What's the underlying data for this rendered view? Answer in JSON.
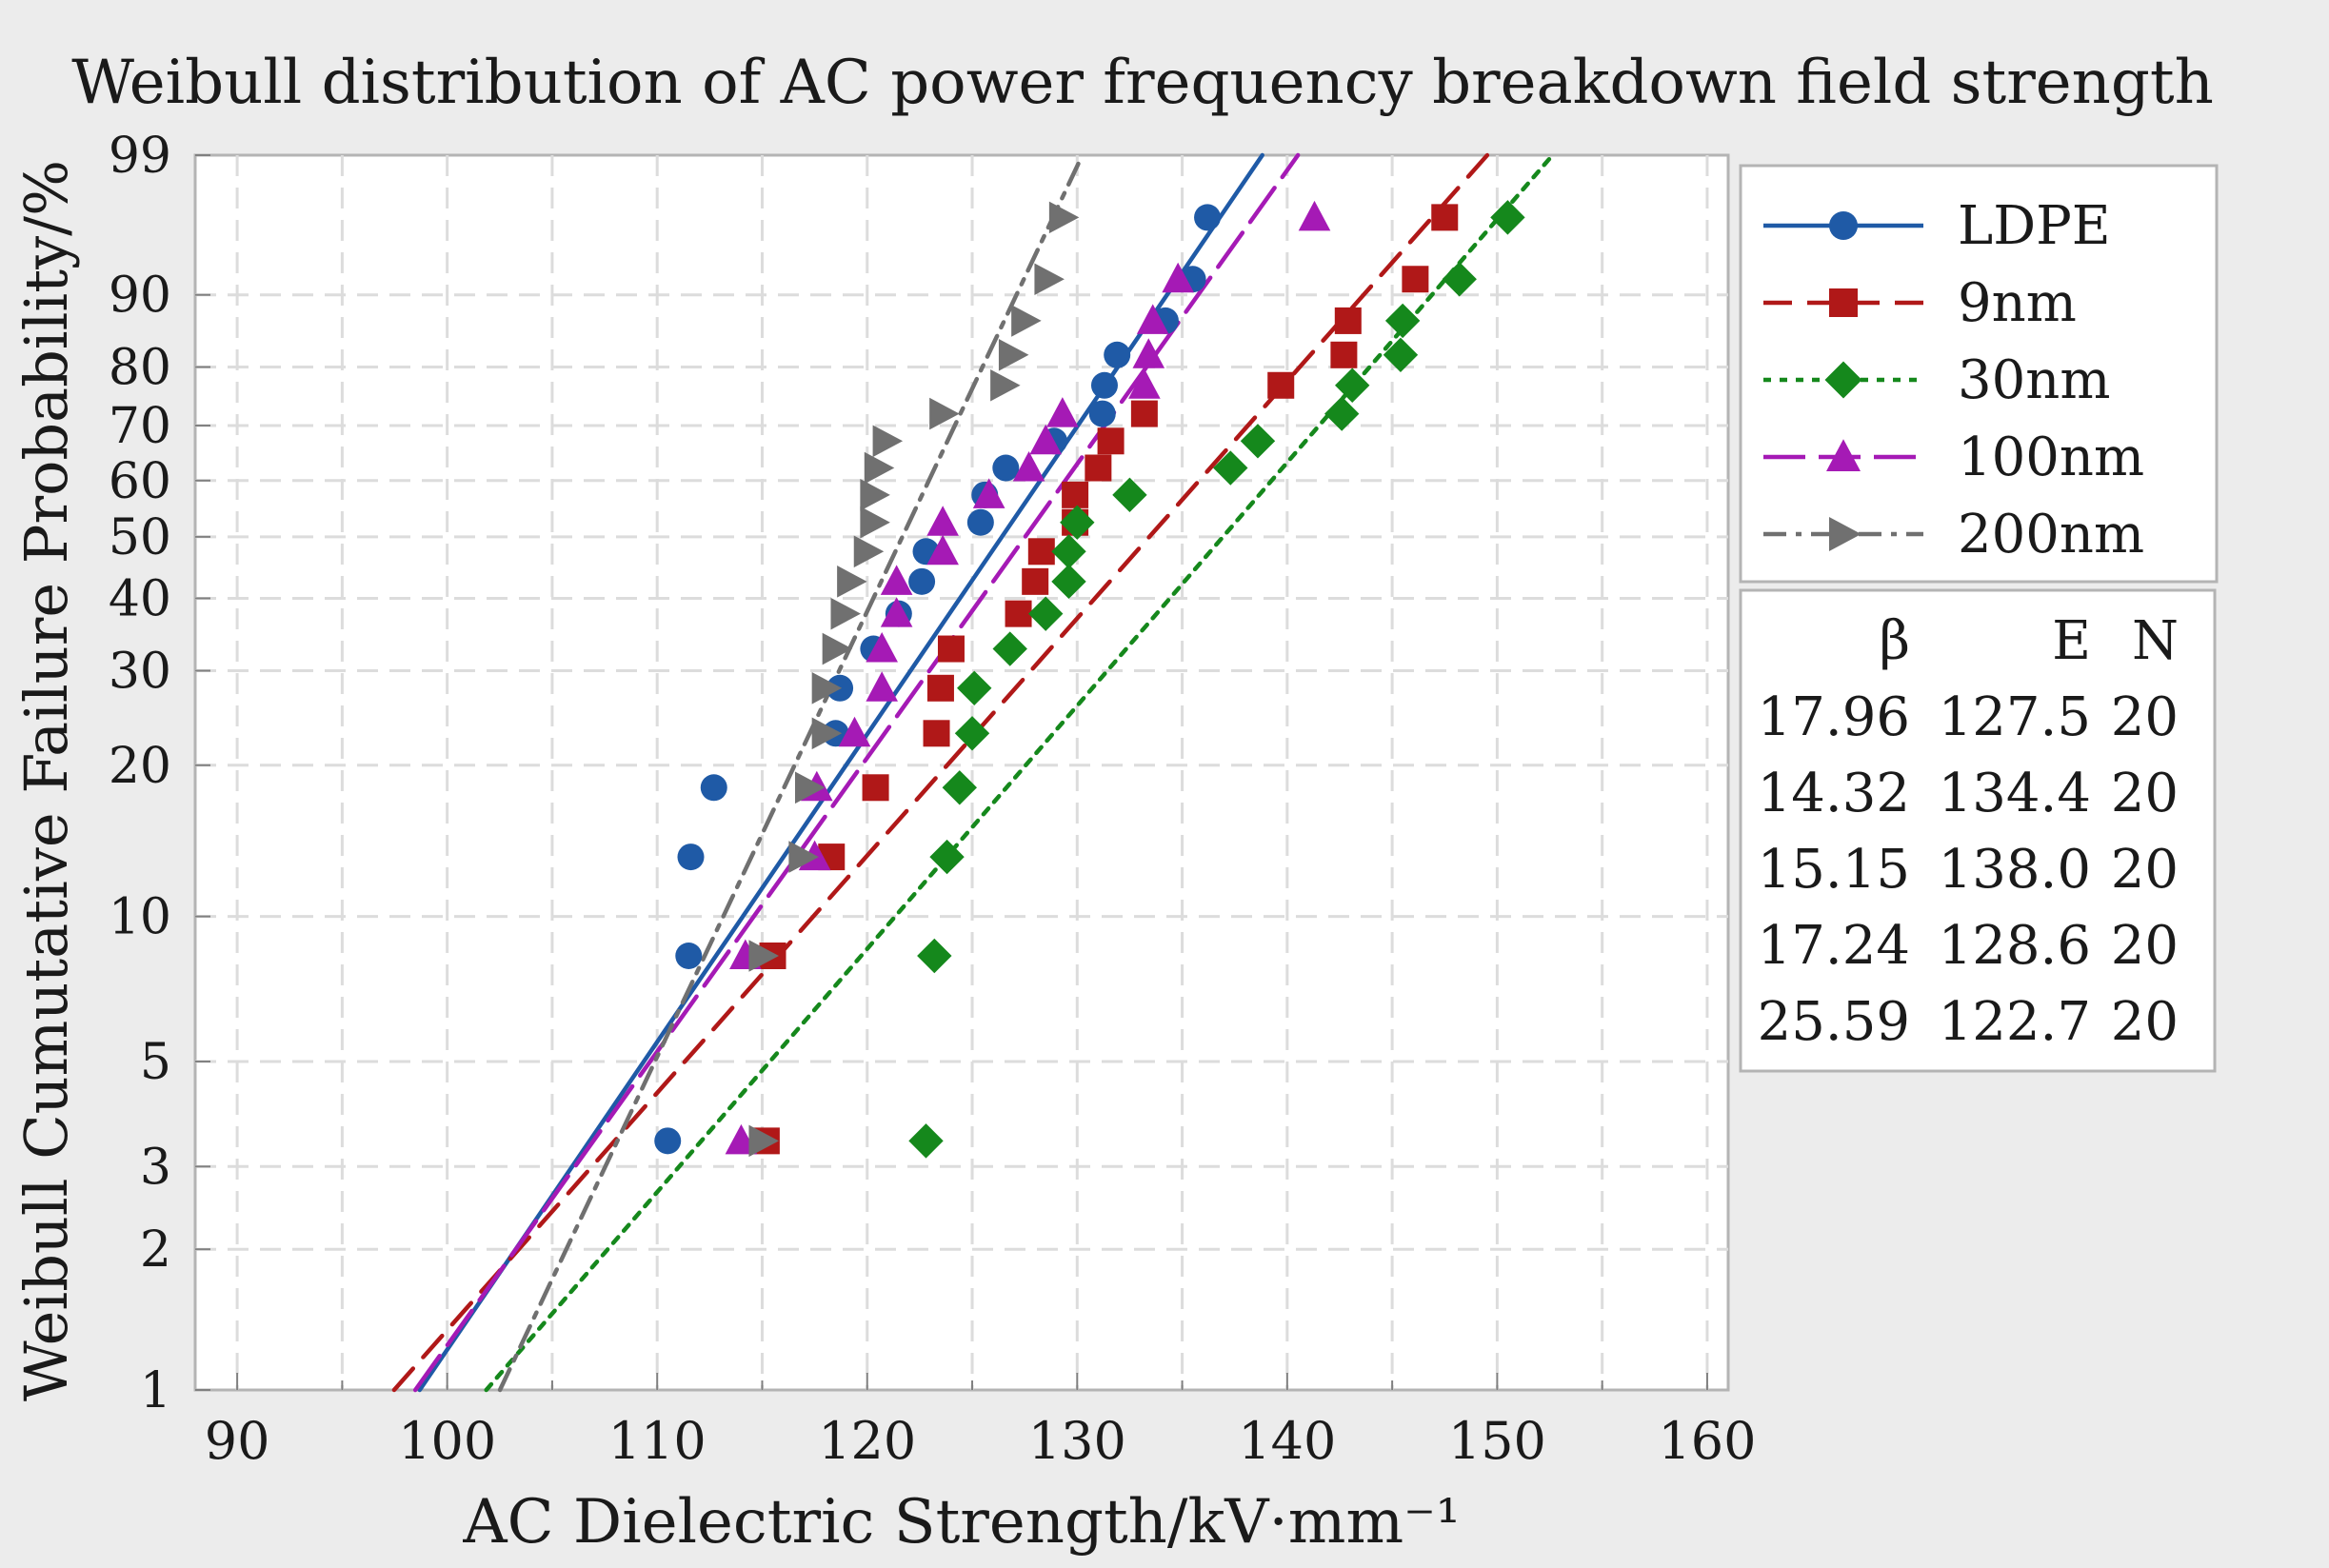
{
  "chart_data": {
    "type": "scatter",
    "title": "Weibull distribution of AC power frequency breakdown field strength",
    "xlabel": "AC Dielectric Strength/kV·mm⁻¹",
    "ylabel": "Weibull Cumutative Failure Probability/%",
    "xlim": [
      88,
      161
    ],
    "ylim": [
      1,
      99
    ],
    "x_ticks": [
      90,
      100,
      110,
      120,
      130,
      140,
      150,
      160
    ],
    "y_ticks": [
      1,
      2,
      3,
      5,
      10,
      20,
      30,
      40,
      50,
      60,
      70,
      80,
      90,
      99
    ],
    "grid": true,
    "legend_position": "right",
    "series": [
      {
        "name": "LDPE",
        "color": "#1f5aa6",
        "marker": "circle",
        "line_style": "solid",
        "beta": 17.96,
        "eta": 127.5,
        "n": 20,
        "points": [
          [
            110.5,
            3.4
          ],
          [
            111.5,
            8.3
          ],
          [
            111.6,
            13.2
          ],
          [
            112.7,
            18.1
          ],
          [
            118.5,
            23.0
          ],
          [
            118.7,
            27.9
          ],
          [
            120.3,
            32.8
          ],
          [
            122.6,
            42.6
          ],
          [
            122.8,
            47.5
          ],
          [
            125.4,
            52.5
          ],
          [
            125.6,
            57.4
          ],
          [
            126.6,
            62.3
          ],
          [
            128.9,
            67.2
          ],
          [
            131.2,
            72.1
          ],
          [
            131.3,
            77.0
          ],
          [
            131.9,
            81.9
          ],
          [
            134.2,
            86.8
          ],
          [
            135.5,
            91.7
          ],
          [
            136.2,
            96.6
          ],
          [
            121.5,
            37.7
          ]
        ]
      },
      {
        "name": "9nm",
        "color": "#b01818",
        "marker": "square",
        "line_style": "dashed",
        "beta": 14.32,
        "eta": 134.4,
        "n": 20,
        "points": [
          [
            115.2,
            3.4
          ],
          [
            115.5,
            8.3
          ],
          [
            118.3,
            13.2
          ],
          [
            120.4,
            18.1
          ],
          [
            123.3,
            23.0
          ],
          [
            123.5,
            27.9
          ],
          [
            124.0,
            32.8
          ],
          [
            127.2,
            37.7
          ],
          [
            128.0,
            42.6
          ],
          [
            128.3,
            47.5
          ],
          [
            129.9,
            52.5
          ],
          [
            129.9,
            57.4
          ],
          [
            131.0,
            62.3
          ],
          [
            131.6,
            67.2
          ],
          [
            133.2,
            72.1
          ],
          [
            139.7,
            77.0
          ],
          [
            142.7,
            81.9
          ],
          [
            142.9,
            86.8
          ],
          [
            146.1,
            91.7
          ],
          [
            147.5,
            96.6
          ]
        ]
      },
      {
        "name": "30nm",
        "color": "#15881c",
        "marker": "diamond",
        "line_style": "dotted",
        "beta": 15.15,
        "eta": 138.0,
        "n": 20,
        "points": [
          [
            122.8,
            3.4
          ],
          [
            123.2,
            8.3
          ],
          [
            123.8,
            13.2
          ],
          [
            124.4,
            18.1
          ],
          [
            125.0,
            23.0
          ],
          [
            125.1,
            27.9
          ],
          [
            126.8,
            32.8
          ],
          [
            128.5,
            37.7
          ],
          [
            129.6,
            42.6
          ],
          [
            129.6,
            47.5
          ],
          [
            130.0,
            52.5
          ],
          [
            132.5,
            57.4
          ],
          [
            137.3,
            62.3
          ],
          [
            138.6,
            67.2
          ],
          [
            142.6,
            72.1
          ],
          [
            143.1,
            77.0
          ],
          [
            145.4,
            81.9
          ],
          [
            145.5,
            86.8
          ],
          [
            148.2,
            91.7
          ],
          [
            150.5,
            96.6
          ]
        ]
      },
      {
        "name": "100nm",
        "color": "#a51ab5",
        "marker": "triangle-up",
        "line_style": "longdash",
        "beta": 17.24,
        "eta": 128.6,
        "n": 20,
        "points": [
          [
            114.0,
            3.4
          ],
          [
            114.2,
            8.3
          ],
          [
            117.5,
            13.2
          ],
          [
            117.6,
            18.1
          ],
          [
            119.4,
            23.0
          ],
          [
            120.7,
            27.9
          ],
          [
            120.7,
            32.8
          ],
          [
            121.4,
            37.7
          ],
          [
            121.4,
            42.6
          ],
          [
            123.6,
            47.5
          ],
          [
            123.6,
            52.5
          ],
          [
            125.8,
            57.4
          ],
          [
            127.7,
            62.3
          ],
          [
            128.5,
            67.2
          ],
          [
            129.3,
            72.1
          ],
          [
            133.2,
            77.0
          ],
          [
            133.4,
            81.9
          ],
          [
            133.6,
            86.8
          ],
          [
            134.8,
            91.7
          ],
          [
            141.3,
            96.6
          ]
        ]
      },
      {
        "name": "200nm",
        "color": "#707070",
        "marker": "triangle-right",
        "line_style": "dashdot",
        "beta": 25.59,
        "eta": 122.7,
        "n": 20,
        "points": [
          [
            115.0,
            3.4
          ],
          [
            115.0,
            8.3
          ],
          [
            116.9,
            13.2
          ],
          [
            117.2,
            18.1
          ],
          [
            118.0,
            23.0
          ],
          [
            118.0,
            27.9
          ],
          [
            118.5,
            32.8
          ],
          [
            118.9,
            37.7
          ],
          [
            119.2,
            42.6
          ],
          [
            120.0,
            47.5
          ],
          [
            120.3,
            52.5
          ],
          [
            120.3,
            57.4
          ],
          [
            120.5,
            62.3
          ],
          [
            120.9,
            67.2
          ],
          [
            123.6,
            72.1
          ],
          [
            126.5,
            77.0
          ],
          [
            126.9,
            81.9
          ],
          [
            127.5,
            86.8
          ],
          [
            128.6,
            91.7
          ],
          [
            129.3,
            96.6
          ]
        ]
      }
    ],
    "stats_table": {
      "headers": [
        "β",
        "E",
        "N"
      ],
      "rows": [
        [
          "17.96",
          "127.5",
          "20"
        ],
        [
          "14.32",
          "134.4",
          "20"
        ],
        [
          "15.15",
          "138.0",
          "20"
        ],
        [
          "17.24",
          "128.6",
          "20"
        ],
        [
          "25.59",
          "122.7",
          "20"
        ]
      ]
    }
  }
}
